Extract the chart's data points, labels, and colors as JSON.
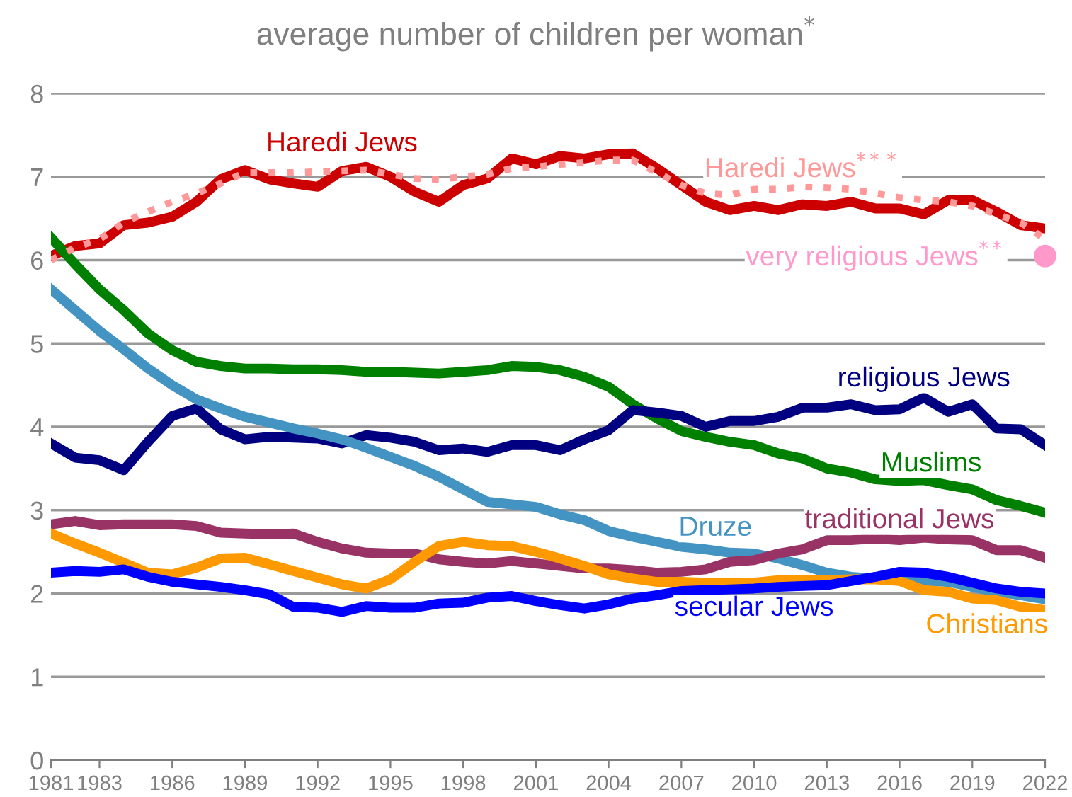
{
  "chart_data": {
    "type": "line",
    "title": "average number of children per woman$^{*}$",
    "x": [
      1981,
      1982,
      1983,
      1984,
      1985,
      1986,
      1987,
      1988,
      1989,
      1990,
      1991,
      1992,
      1993,
      1994,
      1995,
      1996,
      1997,
      1998,
      1999,
      2000,
      2001,
      2002,
      2003,
      2004,
      2005,
      2006,
      2007,
      2008,
      2009,
      2010,
      2011,
      2012,
      2013,
      2014,
      2015,
      2016,
      2017,
      2018,
      2019,
      2020,
      2021,
      2022
    ],
    "xlim": [
      1981,
      2022
    ],
    "xticks": [
      1981,
      1983,
      1986,
      1989,
      1992,
      1995,
      1998,
      2001,
      2004,
      2007,
      2010,
      2013,
      2016,
      2019,
      2022
    ],
    "ylim": [
      0,
      8
    ],
    "yticks": [
      0,
      1,
      2,
      3,
      4,
      5,
      6,
      7,
      8
    ],
    "grid": "y",
    "legend": false,
    "series": [
      {
        "name": "Haredi Jews$^{***}$",
        "color": "#ff9999",
        "line_style": "dotted",
        "values": [
          6.0,
          6.15,
          6.25,
          6.45,
          6.58,
          6.7,
          6.8,
          6.92,
          7.05,
          7.05,
          7.05,
          7.06,
          7.07,
          7.08,
          7.03,
          6.98,
          6.97,
          7.0,
          7.03,
          7.1,
          7.12,
          7.15,
          7.17,
          7.2,
          7.2,
          7.05,
          6.9,
          6.8,
          6.78,
          6.85,
          6.85,
          6.88,
          6.87,
          6.85,
          6.8,
          6.75,
          6.72,
          6.7,
          6.65,
          6.55,
          6.45,
          6.25
        ]
      },
      {
        "name": "Haredi Jews",
        "color": "#cc0000",
        "values": [
          6.05,
          6.17,
          6.2,
          6.42,
          6.45,
          6.52,
          6.7,
          6.97,
          7.08,
          6.97,
          6.92,
          6.88,
          7.07,
          7.12,
          7.0,
          6.82,
          6.7,
          6.9,
          6.98,
          7.22,
          7.15,
          7.25,
          7.22,
          7.27,
          7.28,
          7.1,
          6.9,
          6.7,
          6.6,
          6.65,
          6.6,
          6.67,
          6.65,
          6.7,
          6.62,
          6.62,
          6.55,
          6.72,
          6.72,
          6.58,
          6.42,
          6.38
        ]
      },
      {
        "name": "very religious Jews$^{**}$",
        "type": "scatter",
        "color": "#ff99cc",
        "marker": "circle",
        "x": [
          2022
        ],
        "values": [
          6.05
        ]
      },
      {
        "name": "Muslims",
        "color": "#008000",
        "values": [
          6.27,
          5.95,
          5.65,
          5.4,
          5.12,
          4.92,
          4.78,
          4.73,
          4.7,
          4.7,
          4.69,
          4.69,
          4.68,
          4.66,
          4.66,
          4.65,
          4.64,
          4.66,
          4.68,
          4.73,
          4.72,
          4.68,
          4.6,
          4.48,
          4.27,
          4.1,
          3.95,
          3.88,
          3.82,
          3.78,
          3.68,
          3.62,
          3.5,
          3.45,
          3.37,
          3.35,
          3.36,
          3.3,
          3.25,
          3.12,
          3.05,
          2.97
        ]
      },
      {
        "name": "religious Jews",
        "color": "#000080",
        "values": [
          3.8,
          3.63,
          3.6,
          3.48,
          3.82,
          4.13,
          4.22,
          3.97,
          3.85,
          3.88,
          3.87,
          3.86,
          3.8,
          3.9,
          3.87,
          3.82,
          3.72,
          3.74,
          3.7,
          3.78,
          3.78,
          3.72,
          3.85,
          3.96,
          4.2,
          4.17,
          4.13,
          4.0,
          4.07,
          4.07,
          4.12,
          4.23,
          4.23,
          4.27,
          4.2,
          4.21,
          4.35,
          4.18,
          4.27,
          3.98,
          3.97,
          3.78
        ]
      },
      {
        "name": "Druze",
        "color": "#4393c3",
        "values": [
          5.65,
          5.4,
          5.15,
          4.93,
          4.7,
          4.5,
          4.33,
          4.22,
          4.12,
          4.05,
          3.98,
          3.92,
          3.85,
          3.75,
          3.64,
          3.53,
          3.4,
          3.25,
          3.1,
          3.07,
          3.04,
          2.95,
          2.88,
          2.75,
          2.68,
          2.62,
          2.56,
          2.53,
          2.49,
          2.48,
          2.42,
          2.34,
          2.25,
          2.2,
          2.18,
          2.17,
          2.15,
          2.14,
          2.08,
          2.02,
          1.98,
          1.93
        ]
      },
      {
        "name": "traditional Jews",
        "color": "#993366",
        "values": [
          2.83,
          2.87,
          2.82,
          2.83,
          2.83,
          2.83,
          2.81,
          2.73,
          2.72,
          2.71,
          2.72,
          2.62,
          2.54,
          2.49,
          2.48,
          2.48,
          2.41,
          2.38,
          2.36,
          2.39,
          2.36,
          2.33,
          2.3,
          2.3,
          2.28,
          2.25,
          2.26,
          2.29,
          2.38,
          2.4,
          2.48,
          2.53,
          2.64,
          2.64,
          2.66,
          2.64,
          2.67,
          2.65,
          2.64,
          2.52,
          2.52,
          2.43
        ]
      },
      {
        "name": "Christians",
        "color": "#ff9900",
        "values": [
          2.72,
          2.6,
          2.49,
          2.37,
          2.25,
          2.23,
          2.31,
          2.42,
          2.43,
          2.35,
          2.27,
          2.19,
          2.11,
          2.06,
          2.17,
          2.38,
          2.57,
          2.62,
          2.58,
          2.57,
          2.5,
          2.42,
          2.33,
          2.23,
          2.18,
          2.14,
          2.14,
          2.13,
          2.13,
          2.13,
          2.16,
          2.16,
          2.16,
          2.17,
          2.17,
          2.15,
          2.04,
          2.02,
          1.94,
          1.92,
          1.84,
          1.8
        ]
      },
      {
        "name": "secular Jews",
        "color": "#0000ff",
        "values": [
          2.25,
          2.27,
          2.26,
          2.29,
          2.2,
          2.14,
          2.11,
          2.08,
          2.04,
          1.99,
          1.84,
          1.83,
          1.78,
          1.85,
          1.83,
          1.83,
          1.88,
          1.89,
          1.95,
          1.97,
          1.91,
          1.86,
          1.82,
          1.87,
          1.94,
          1.98,
          2.03,
          2.04,
          2.05,
          2.06,
          2.08,
          2.09,
          2.1,
          2.15,
          2.2,
          2.26,
          2.25,
          2.2,
          2.13,
          2.06,
          2.02,
          2.0
        ]
      }
    ]
  }
}
